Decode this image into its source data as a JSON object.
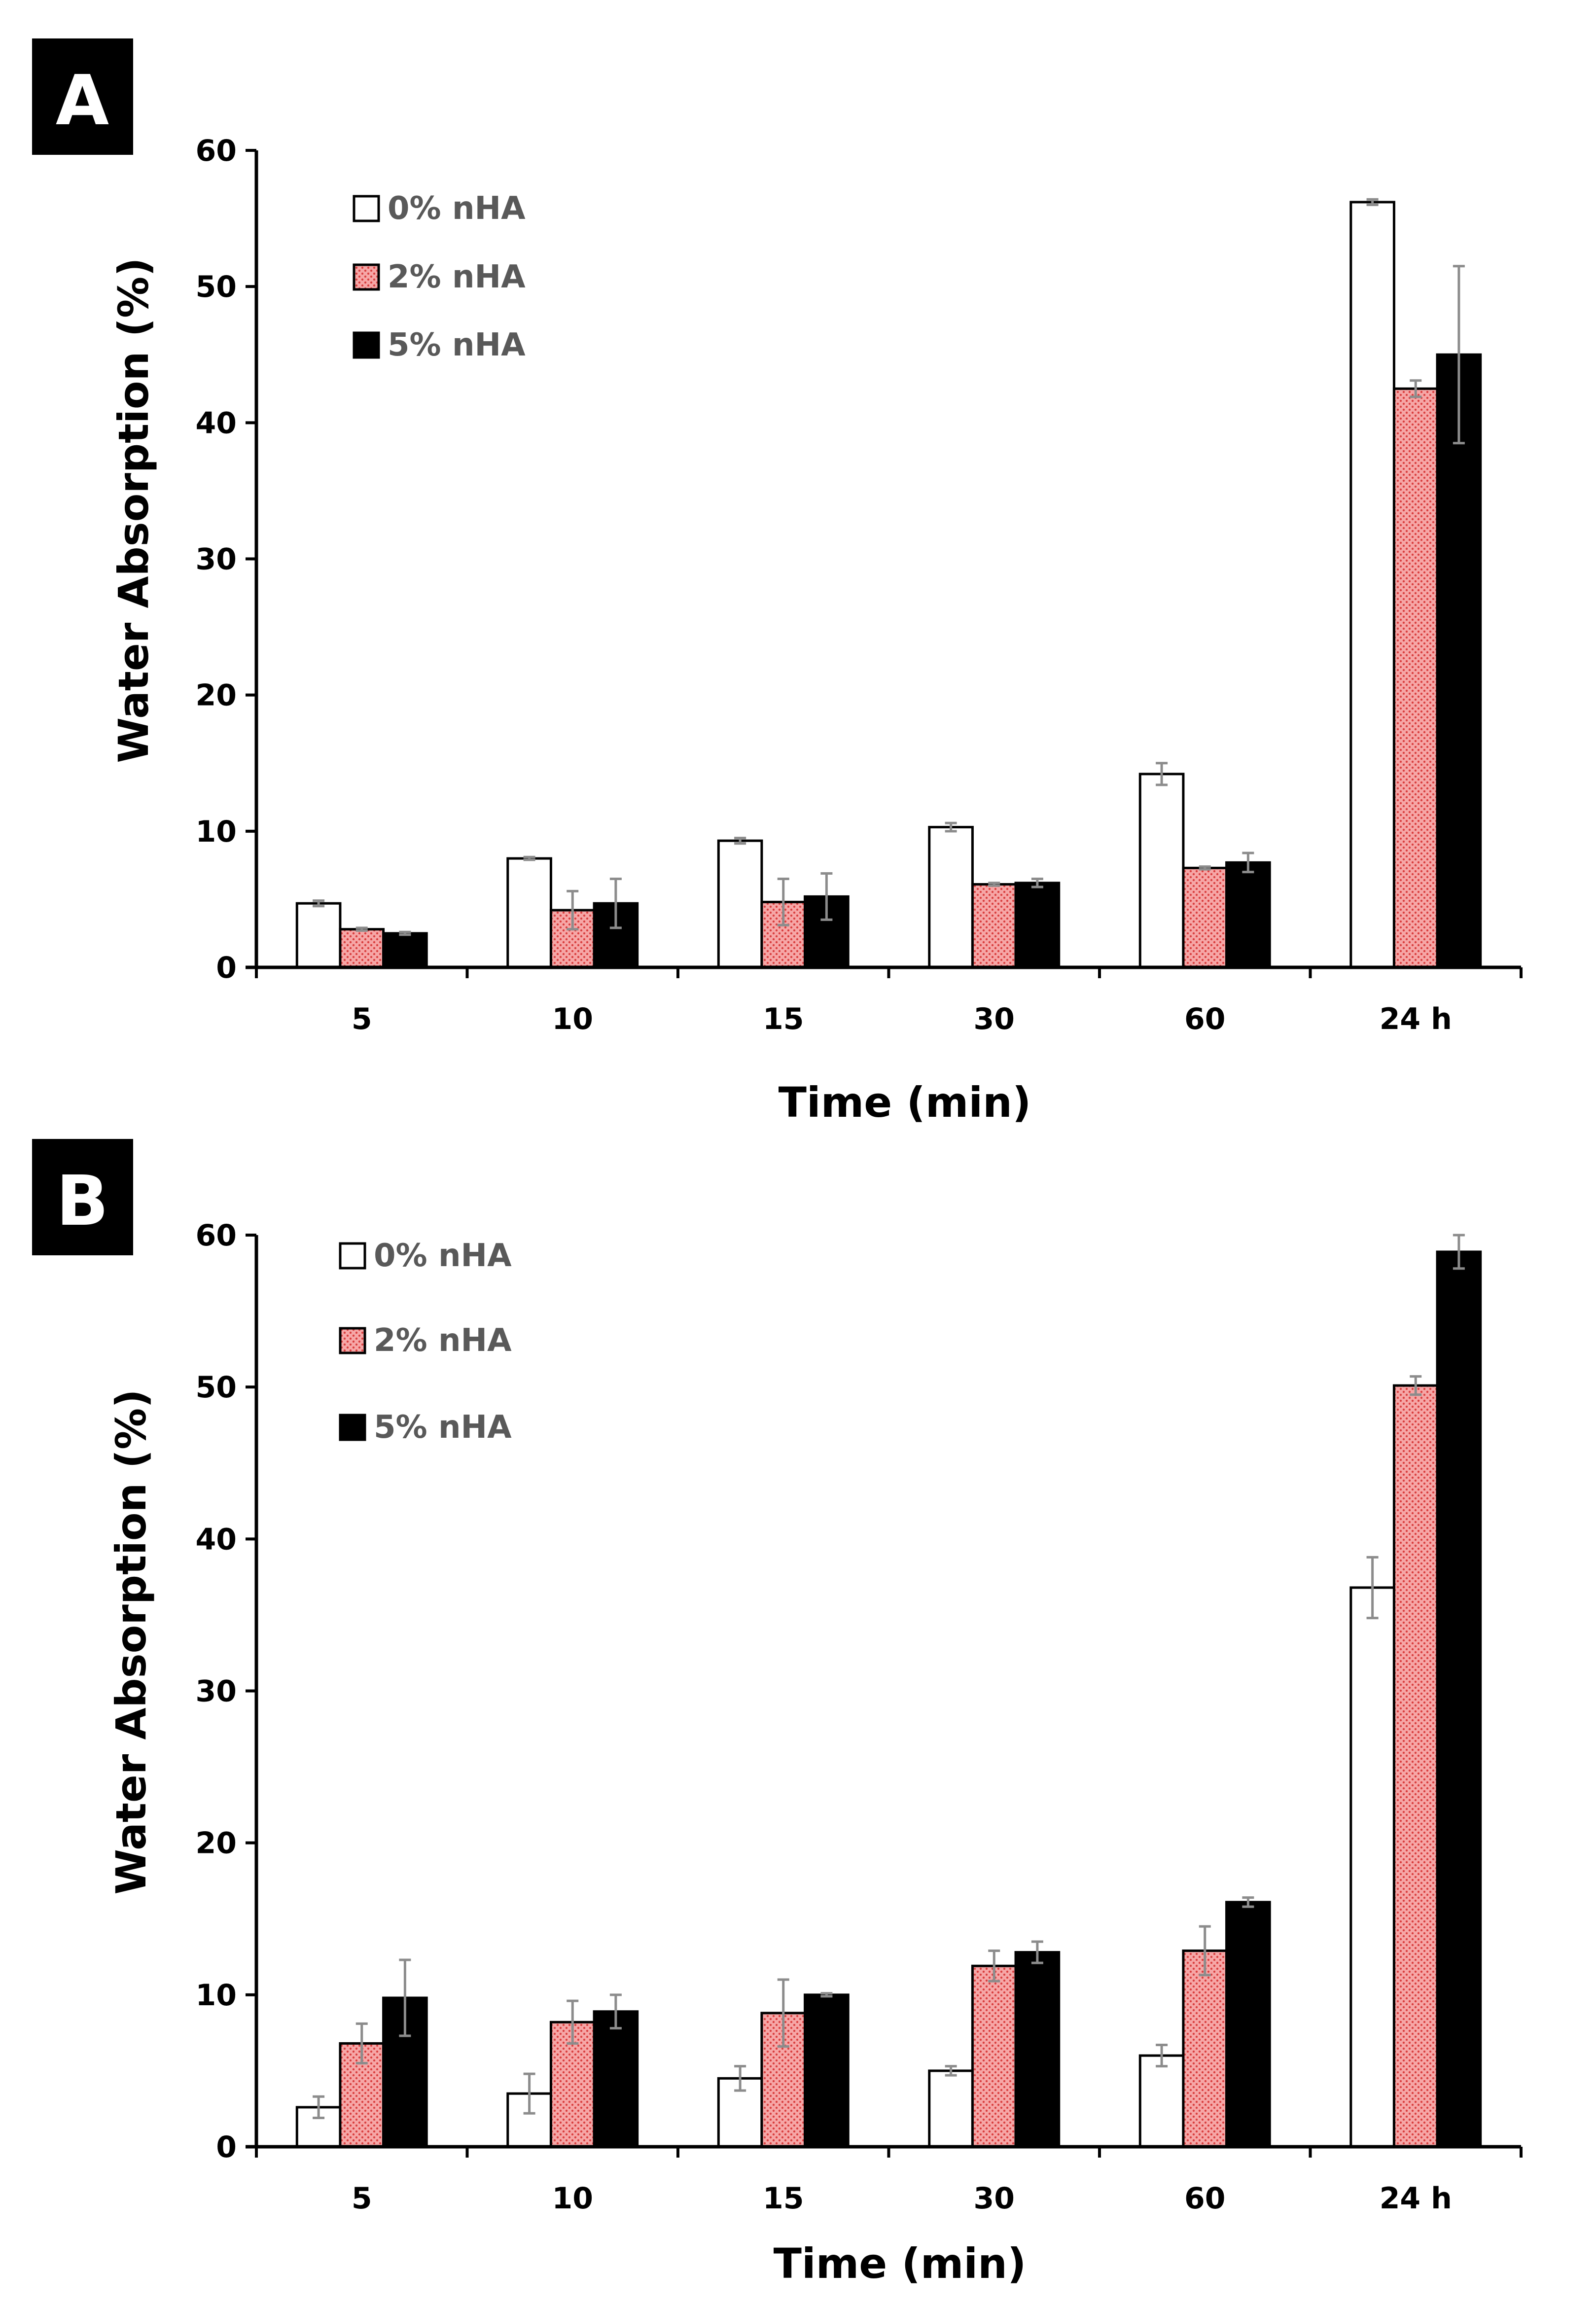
{
  "colors": {
    "series_0": "#ffffff",
    "series_2_base": "#f6a6a6",
    "series_2_dot": "#d94040",
    "series_5": "#000000",
    "error_bar": "#8c8c8c",
    "axis": "#000000",
    "panel_label_bg": "#000000",
    "panel_label_text": "#ffffff",
    "legend_text": "#595959"
  },
  "chart_data": [
    {
      "panel": "A",
      "type": "bar",
      "xlabel": "Time (min)",
      "ylabel": "Water Absorption (%)",
      "ylim": [
        0,
        60
      ],
      "yticks": [
        "0",
        "10",
        "20",
        "30",
        "40",
        "50",
        "60"
      ],
      "categories": [
        "5",
        "10",
        "15",
        "30",
        "60",
        "24 h"
      ],
      "legend_position": "top-left",
      "series": [
        {
          "name": "0% nHA",
          "values": [
            4.7,
            8.0,
            9.3,
            10.3,
            14.2,
            56.2
          ],
          "errors": [
            0.2,
            0.1,
            0.2,
            0.3,
            0.8,
            0.2
          ]
        },
        {
          "name": "2% nHA",
          "values": [
            2.8,
            4.2,
            4.8,
            6.1,
            7.3,
            42.5
          ],
          "errors": [
            0.1,
            1.4,
            1.7,
            0.1,
            0.1,
            0.6
          ]
        },
        {
          "name": "5% nHA",
          "values": [
            2.5,
            4.7,
            5.2,
            6.2,
            7.7,
            45.0
          ],
          "errors": [
            0.1,
            1.8,
            1.7,
            0.3,
            0.7,
            6.5
          ]
        }
      ]
    },
    {
      "panel": "B",
      "type": "bar",
      "xlabel": "Time (min)",
      "ylabel": "Water Absorption (%)",
      "ylim": [
        0,
        60
      ],
      "yticks": [
        "0",
        "10",
        "20",
        "30",
        "40",
        "50",
        "60"
      ],
      "categories": [
        "5",
        "10",
        "15",
        "30",
        "60",
        "24 h"
      ],
      "legend_position": "top-left",
      "series": [
        {
          "name": "0% nHA",
          "values": [
            2.6,
            3.5,
            4.5,
            5.0,
            6.0,
            36.8
          ],
          "errors": [
            0.7,
            1.3,
            0.8,
            0.3,
            0.7,
            2.0
          ]
        },
        {
          "name": "2% nHA",
          "values": [
            6.8,
            8.2,
            8.8,
            11.9,
            12.9,
            50.1
          ],
          "errors": [
            1.3,
            1.4,
            2.2,
            1.0,
            1.6,
            0.6
          ]
        },
        {
          "name": "5% nHA",
          "values": [
            9.8,
            8.9,
            10.0,
            12.8,
            16.1,
            58.9
          ],
          "errors": [
            2.5,
            1.1,
            0.1,
            0.7,
            0.3,
            1.1
          ]
        }
      ]
    }
  ]
}
